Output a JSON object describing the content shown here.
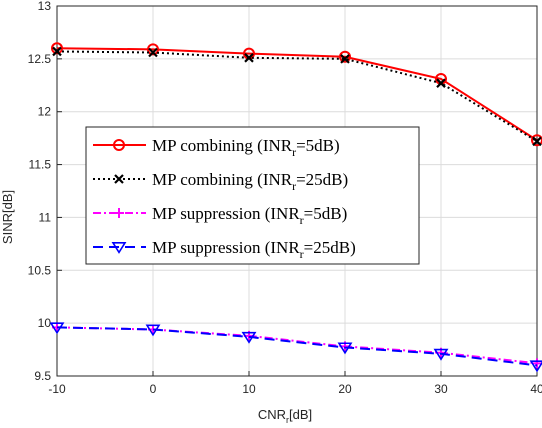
{
  "chart_data": {
    "type": "line",
    "xlabel": {
      "main": "CNR",
      "sub": "r",
      "suffix": "[dB]"
    },
    "ylabel": "SINR[dB]",
    "x": [
      -10,
      0,
      10,
      20,
      30,
      40
    ],
    "xlim": [
      -10,
      40
    ],
    "ylim": [
      9.5,
      13
    ],
    "xticks": [
      "-10",
      "0",
      "10",
      "20",
      "30",
      "40"
    ],
    "yticks": [
      "9.5",
      "10",
      "10.5",
      "11",
      "11.5",
      "12",
      "12.5",
      "13"
    ],
    "grid": true,
    "legend_placement": "center-left",
    "series": [
      {
        "name_main": "MP combining (INR",
        "name_sub": "r",
        "name_suffix": "=5dB)",
        "values": [
          12.6,
          12.59,
          12.55,
          12.52,
          12.31,
          11.73
        ],
        "color": "#ff0000",
        "dash": "",
        "marker": "circle"
      },
      {
        "name_main": "MP combining (INR",
        "name_sub": "r",
        "name_suffix": "=25dB)",
        "values": [
          12.57,
          12.56,
          12.51,
          12.5,
          12.27,
          11.72
        ],
        "color": "#000000",
        "dash": "2,3",
        "marker": "x"
      },
      {
        "name_main": "MP suppression (INR",
        "name_sub": "r",
        "name_suffix": "=5dB)",
        "values": [
          9.96,
          9.94,
          9.88,
          9.78,
          9.72,
          9.62
        ],
        "color": "#ff00ff",
        "dash": "8,3,2,3",
        "marker": "plus"
      },
      {
        "name_main": "MP suppression (INR",
        "name_sub": "r",
        "name_suffix": "=25dB)",
        "values": [
          9.96,
          9.94,
          9.87,
          9.77,
          9.71,
          9.6
        ],
        "color": "#0000ff",
        "dash": "10,6",
        "marker": "triangle-down"
      }
    ]
  }
}
